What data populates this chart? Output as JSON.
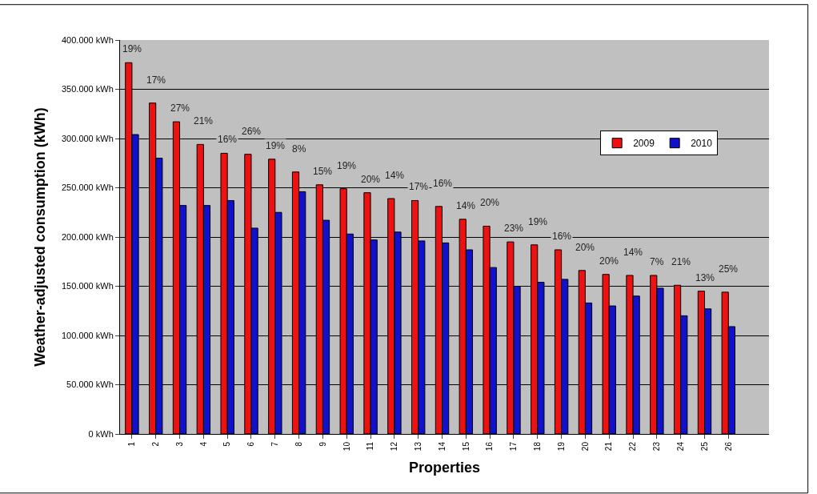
{
  "chart_data": {
    "type": "bar",
    "xlabel": "Properties",
    "ylabel": "Weather-adjusted consumption (kWh)",
    "categories": [
      "1",
      "2",
      "3",
      "4",
      "5",
      "6",
      "7",
      "8",
      "9",
      "10",
      "11",
      "12",
      "13",
      "14",
      "15",
      "16",
      "17",
      "18",
      "19",
      "20",
      "21",
      "22",
      "23",
      "24",
      "25",
      "26"
    ],
    "series": [
      {
        "name": "2009",
        "color": "#ee1111",
        "values": [
          377000,
          336000,
          317000,
          294000,
          285000,
          284000,
          279000,
          266000,
          253000,
          249000,
          245000,
          239000,
          237000,
          231000,
          218000,
          211000,
          195000,
          192000,
          187000,
          166000,
          162000,
          161000,
          161000,
          151000,
          145000,
          144000
        ]
      },
      {
        "name": "2010",
        "color": "#1111cc",
        "values": [
          304000,
          280000,
          232000,
          232000,
          237000,
          209000,
          225000,
          246000,
          217000,
          203000,
          197000,
          205000,
          196000,
          194000,
          187000,
          169000,
          150000,
          154000,
          157000,
          133000,
          130000,
          140000,
          148000,
          120000,
          127000,
          109000
        ]
      }
    ],
    "ylim": [
      0,
      400000
    ],
    "yticks": [
      {
        "value": 0,
        "label": "0 kWh"
      },
      {
        "value": 50000,
        "label": "50.000 kWh"
      },
      {
        "value": 100000,
        "label": "100.000 kWh"
      },
      {
        "value": 150000,
        "label": "150.000 kWh"
      },
      {
        "value": 200000,
        "label": "200.000 kWh"
      },
      {
        "value": 250000,
        "label": "250.000 kWh"
      },
      {
        "value": 300000,
        "label": "300.000 kWh"
      },
      {
        "value": 350000,
        "label": "350.000 kWh"
      },
      {
        "value": 400000,
        "label": "400.000 kWh"
      }
    ],
    "grid": "y",
    "legend": "top right",
    "annotations": [
      "19%",
      "17%",
      "27%",
      "21%",
      "16%",
      "26%",
      "19%",
      "8%",
      "15%",
      "19%",
      "20%",
      "14%",
      "17%",
      "16%",
      "14%",
      "20%",
      "23%",
      "19%",
      "16%",
      "20%",
      "20%",
      "14%",
      "7%",
      "21%",
      "13%",
      "25%"
    ]
  }
}
